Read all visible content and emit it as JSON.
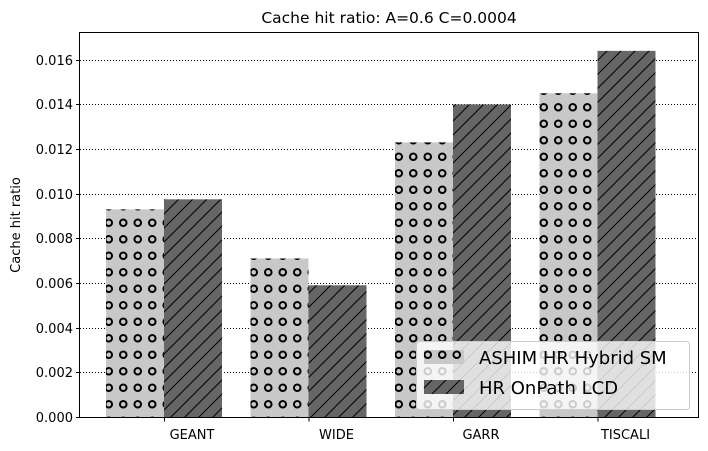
{
  "chart_data": {
    "type": "bar",
    "title": "Cache hit ratio: A=0.6 C=0.0004",
    "xlabel": "",
    "ylabel": "Cache hit ratio",
    "categories": [
      "GEANT",
      "WIDE",
      "GARR",
      "TISCALI"
    ],
    "series": [
      {
        "name": "ASHIM HR Hybrid SM",
        "values": [
          0.0093,
          0.0071,
          0.0123,
          0.0145
        ],
        "color": "#c8c8c8",
        "hatch": "circles"
      },
      {
        "name": "HR OnPath LCD",
        "values": [
          0.00975,
          0.0059,
          0.014,
          0.0164
        ],
        "color": "#666666",
        "hatch": "diagonal"
      }
    ],
    "ylim": [
      0,
      0.0172
    ],
    "yticks": [
      "0.000",
      "0.002",
      "0.004",
      "0.006",
      "0.008",
      "0.010",
      "0.012",
      "0.014",
      "0.016"
    ],
    "ytick_values": [
      0,
      0.002,
      0.004,
      0.006,
      0.008,
      0.01,
      0.012,
      0.014,
      0.016
    ],
    "grid": "horizontal-dotted",
    "legend_position": "bottom-right"
  }
}
